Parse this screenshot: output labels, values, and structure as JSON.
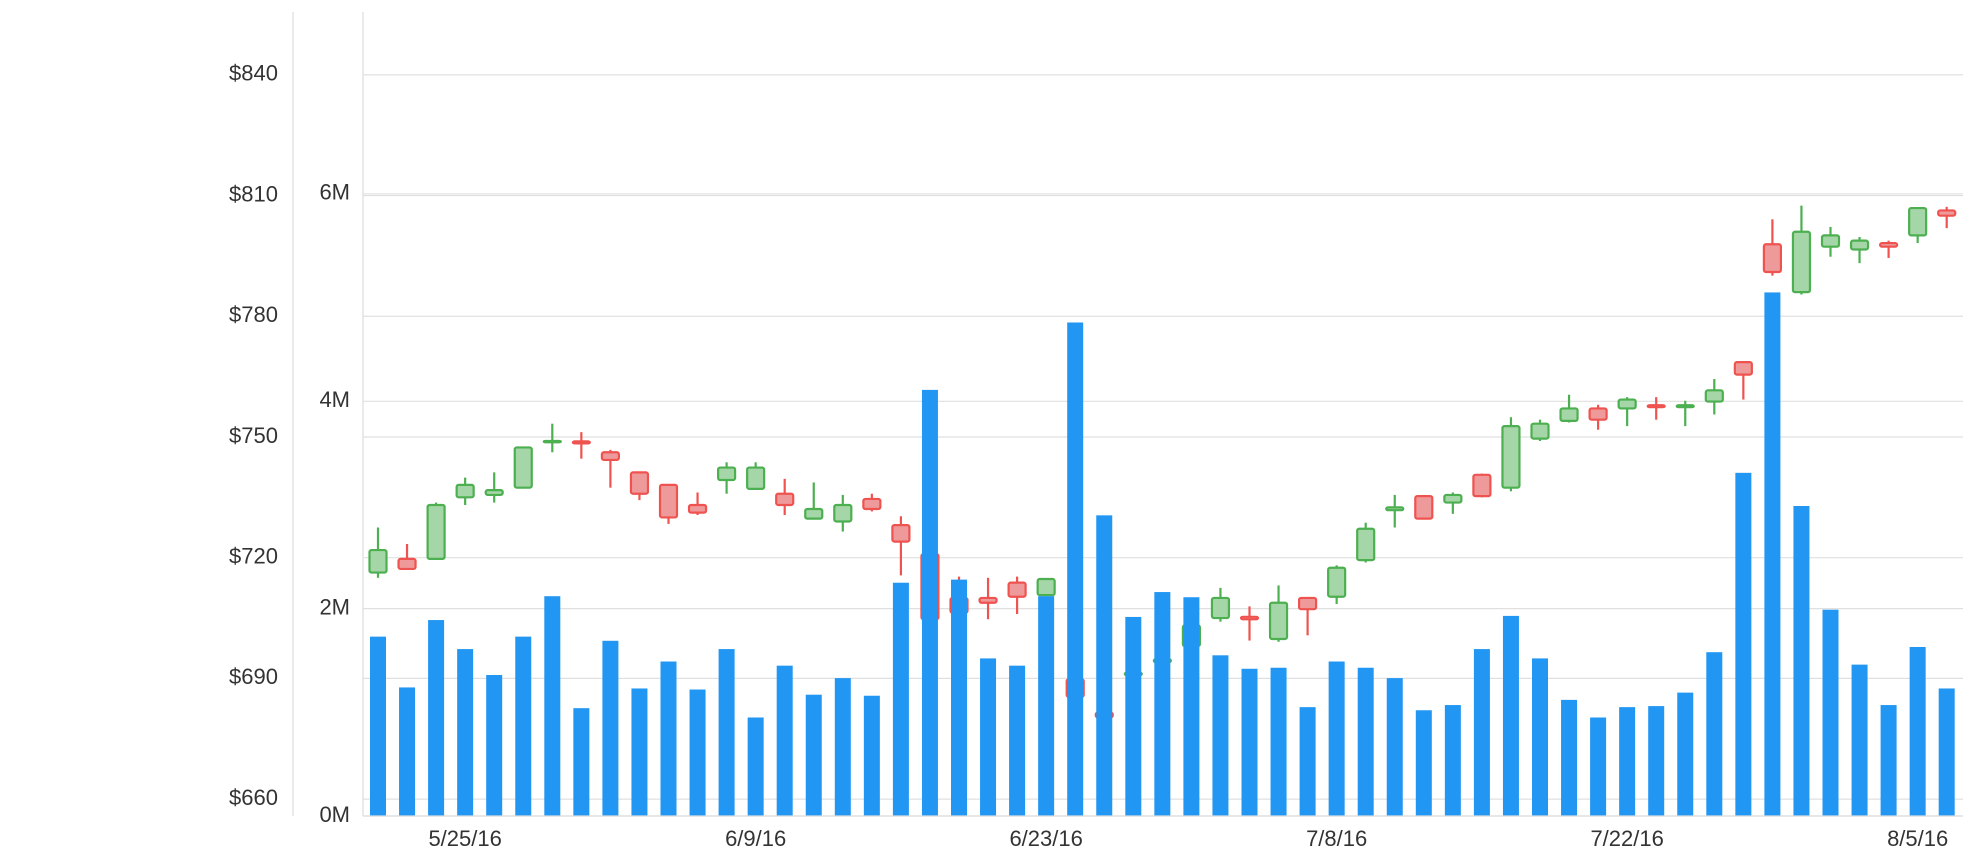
{
  "chart_data": {
    "type": "candlestick",
    "categories": [
      null,
      null,
      null,
      "5/25/16",
      null,
      null,
      null,
      null,
      null,
      null,
      null,
      null,
      null,
      "6/9/16",
      null,
      null,
      null,
      null,
      null,
      null,
      null,
      null,
      null,
      "6/23/16",
      null,
      null,
      null,
      null,
      null,
      null,
      null,
      null,
      null,
      "7/8/16",
      null,
      null,
      null,
      null,
      null,
      null,
      null,
      null,
      null,
      "7/22/16",
      null,
      null,
      null,
      null,
      null,
      null,
      null,
      null,
      null,
      "8/5/16",
      null
    ],
    "open": [
      716.3,
      719.7,
      719.7,
      735.0,
      735.6,
      737.4,
      748.7,
      748.9,
      746.2,
      741.2,
      738.1,
      733.1,
      739.3,
      737.1,
      735.9,
      729.7,
      729.0,
      734.6,
      728.1,
      720.9,
      710.0,
      710.0,
      713.8,
      710.7,
      689.8,
      681.5,
      690.8,
      694.0,
      698.0,
      705.0,
      705.3,
      699.8,
      710.0,
      710.3,
      719.4,
      731.8,
      735.3,
      733.7,
      740.6,
      737.4,
      749.6,
      754.0,
      757.1,
      757.1,
      757.9,
      757.4,
      758.8,
      768.6,
      797.9,
      786.0,
      797.3,
      796.6,
      798.2,
      800.1,
      806.3
    ],
    "high": [
      727.5,
      723.4,
      733.7,
      739.9,
      741.2,
      747.4,
      753.3,
      751.2,
      746.8,
      741.2,
      738.1,
      736.2,
      743.7,
      743.7,
      739.6,
      738.7,
      735.6,
      735.9,
      730.3,
      721.6,
      715.3,
      715.0,
      715.3,
      714.7,
      690.5,
      682.0,
      692.0,
      695.7,
      703.8,
      712.5,
      707.9,
      713.1,
      710.0,
      718.1,
      728.7,
      735.6,
      735.3,
      736.2,
      740.9,
      754.9,
      754.3,
      760.5,
      758.0,
      759.9,
      759.9,
      759.0,
      764.4,
      768.6,
      804.1,
      807.5,
      802.2,
      799.7,
      798.8,
      806.9,
      807.2
    ],
    "low": [
      715.0,
      717.2,
      719.7,
      733.1,
      733.7,
      737.4,
      746.2,
      744.6,
      737.4,
      734.3,
      728.4,
      730.6,
      735.9,
      737.1,
      730.6,
      729.7,
      726.5,
      731.5,
      715.6,
      704.1,
      706.3,
      704.7,
      706.0,
      710.7,
      684.5,
      679.7,
      688.0,
      693.0,
      697.3,
      704.1,
      699.4,
      699.1,
      700.7,
      708.5,
      718.8,
      727.5,
      729.7,
      730.9,
      735.0,
      736.5,
      749.0,
      753.6,
      751.8,
      752.7,
      754.3,
      752.7,
      755.6,
      759.3,
      790.1,
      785.4,
      794.8,
      793.2,
      794.5,
      798.2,
      801.9
    ],
    "close": [
      721.9,
      717.2,
      733.1,
      738.1,
      736.8,
      747.4,
      749.0,
      748.4,
      744.3,
      735.9,
      730.0,
      731.2,
      742.4,
      742.4,
      733.1,
      732.1,
      733.1,
      732.1,
      724.0,
      704.7,
      706.3,
      708.8,
      710.3,
      714.7,
      685.4,
      680.3,
      691.4,
      694.8,
      703.2,
      710.0,
      704.7,
      708.8,
      707.2,
      717.5,
      727.2,
      732.5,
      729.7,
      735.6,
      735.3,
      752.7,
      753.3,
      757.1,
      754.3,
      759.3,
      757.4,
      757.9,
      761.6,
      765.5,
      791.0,
      801.0,
      800.1,
      798.8,
      797.3,
      806.9,
      805.0
    ],
    "volume": [
      1.73,
      1.24,
      1.89,
      1.61,
      1.36,
      1.73,
      2.12,
      1.04,
      1.69,
      1.23,
      1.49,
      1.22,
      1.61,
      0.95,
      1.45,
      1.17,
      1.33,
      1.16,
      2.25,
      4.11,
      2.28,
      1.52,
      1.45,
      2.12,
      4.76,
      2.9,
      1.92,
      2.16,
      2.11,
      1.55,
      1.42,
      1.43,
      1.05,
      1.49,
      1.43,
      1.33,
      1.02,
      1.07,
      1.61,
      1.93,
      1.52,
      1.12,
      0.95,
      1.05,
      1.06,
      1.19,
      1.58,
      3.31,
      5.05,
      2.99,
      1.99,
      1.46,
      1.07,
      1.63,
      1.23
    ],
    "up_color": "#4caf50",
    "up_fill": "#a5d6a7",
    "down_color": "#ef5350",
    "down_fill": "#ef9a9a",
    "volume_color": "#2196f3",
    "ylim": [
      655.8,
      855.5
    ],
    "yticks": [
      {
        "value": 660,
        "label": "$660"
      },
      {
        "value": 690,
        "label": "$690"
      },
      {
        "value": 720,
        "label": "$720"
      },
      {
        "value": 750,
        "label": "$750"
      },
      {
        "value": 780,
        "label": "$780"
      },
      {
        "value": 810,
        "label": "$810"
      },
      {
        "value": 840,
        "label": "$840"
      }
    ],
    "y2lim": [
      0,
      7.75
    ],
    "y2ticks": [
      {
        "value": 0,
        "label": "0M"
      },
      {
        "value": 2,
        "label": "2M"
      },
      {
        "value": 4,
        "label": "4M"
      },
      {
        "value": 6,
        "label": "6M"
      }
    ],
    "grid": true
  }
}
